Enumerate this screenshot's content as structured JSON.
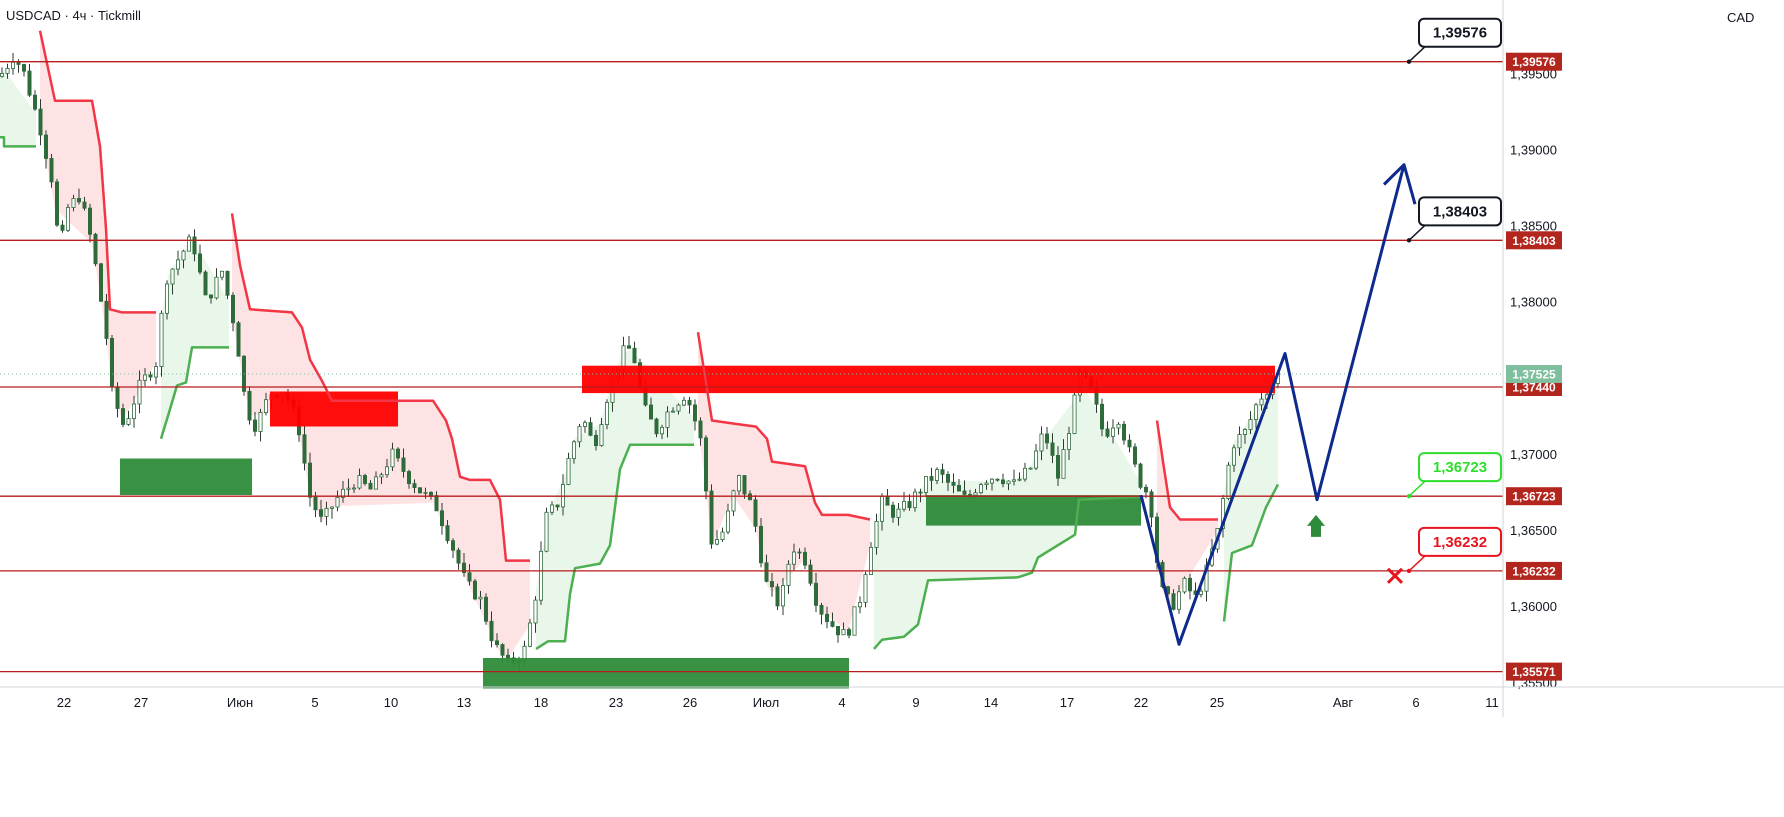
{
  "header": {
    "symbol_line": "USDCAD · 4ч · Tickmill",
    "currency": "CAD"
  },
  "colors": {
    "level_line": "#b71c1c",
    "level_tag": "#b3261e",
    "up_candle": "#26a69a",
    "down_candle": "#ef5350",
    "candle_body": "#2e6b3a",
    "trail_red": "#f23645",
    "trail_green": "#4caf50",
    "fill_red": "#fde3e3",
    "fill_green": "#e9f6ea",
    "zone_red": "#ff0000",
    "zone_green": "#2e8b3a",
    "projection": "#0d2a8c",
    "current_tag": "#7fbf9e",
    "target_green": "#2ede2e",
    "stop_red": "#e8141e"
  },
  "chart_data": {
    "type": "candlestick",
    "symbol": "USDCAD",
    "timeframe": "4ч",
    "broker": "Tickmill",
    "currency": "CAD",
    "ylim": [
      1.3545,
      1.3985
    ],
    "y_ticks": [
      "1,39500",
      "1,39000",
      "1,38500",
      "1,38000",
      "1,37000",
      "1,36500",
      "1,36000",
      "1,35500"
    ],
    "x_ticks": [
      "22",
      "27",
      "Июн",
      "5",
      "10",
      "13",
      "18",
      "23",
      "26",
      "Июл",
      "4",
      "9",
      "14",
      "17",
      "22",
      "25",
      "Авг",
      "6",
      "11"
    ],
    "levels": [
      {
        "price": 1.39576,
        "label": "1,39576"
      },
      {
        "price": 1.38403,
        "label": "1,38403"
      },
      {
        "price": 1.3744,
        "label": "1,37440"
      },
      {
        "price": 1.36723,
        "label": "1,36723"
      },
      {
        "price": 1.36232,
        "label": "1,36232"
      },
      {
        "price": 1.35571,
        "label": "1,35571"
      }
    ],
    "current_price": {
      "price": 1.37525,
      "label": "1,37525"
    },
    "callouts": [
      {
        "label": "1,39576",
        "price": 1.39576,
        "style": "neutral"
      },
      {
        "label": "1,38403",
        "price": 1.38403,
        "style": "neutral"
      },
      {
        "label": "1,36723",
        "price": 1.36723,
        "style": "target"
      },
      {
        "label": "1,36232",
        "price": 1.36232,
        "style": "stop"
      }
    ],
    "zones": [
      {
        "kind": "supply",
        "x_from": 582,
        "x_to": 1275,
        "price_top": 1.3758,
        "price_bottom": 1.374
      },
      {
        "kind": "supply",
        "x_from": 270,
        "x_to": 398,
        "price_top": 1.3741,
        "price_bottom": 1.3718
      },
      {
        "kind": "demand",
        "x_from": 120,
        "x_to": 252,
        "price_top": 1.3697,
        "price_bottom": 1.3673
      },
      {
        "kind": "demand",
        "x_from": 926,
        "x_to": 1141,
        "price_top": 1.3673,
        "price_bottom": 1.3653
      },
      {
        "kind": "demand",
        "x_from": 483,
        "x_to": 849,
        "price_top": 1.3566,
        "price_bottom": 1.3546
      }
    ],
    "projection_path": [
      [
        1141,
        1.3673
      ],
      [
        1179,
        1.3575
      ],
      [
        1285,
        1.3766
      ],
      [
        1317,
        1.367
      ],
      [
        1404,
        1.389
      ]
    ],
    "projection_arrowhead": [
      [
        1384,
        1.3877
      ],
      [
        1404,
        1.389
      ],
      [
        1415,
        1.3864
      ]
    ],
    "buy_arrow": {
      "x": 1316,
      "price": 1.366
    },
    "stop_mark": {
      "x": 1395,
      "price": 1.362
    },
    "trail_red_segments": [
      [
        [
          40,
          1.3978
        ],
        [
          55,
          1.3932
        ],
        [
          92,
          1.3932
        ],
        [
          100,
          1.3902
        ],
        [
          106,
          1.3848
        ],
        [
          110,
          1.3795
        ],
        [
          122,
          1.3793
        ],
        [
          156,
          1.3793
        ]
      ],
      [
        [
          232,
          1.3858
        ],
        [
          240,
          1.3824
        ],
        [
          250,
          1.3795
        ],
        [
          292,
          1.3793
        ],
        [
          302,
          1.3783
        ],
        [
          310,
          1.3762
        ],
        [
          322,
          1.3748
        ],
        [
          332,
          1.3735
        ],
        [
          433,
          1.3735
        ],
        [
          446,
          1.3722
        ],
        [
          452,
          1.371
        ],
        [
          460,
          1.3685
        ],
        [
          470,
          1.3683
        ],
        [
          490,
          1.3683
        ],
        [
          500,
          1.367
        ],
        [
          506,
          1.363
        ],
        [
          530,
          1.363
        ]
      ],
      [
        [
          698,
          1.378
        ],
        [
          704,
          1.3755
        ],
        [
          712,
          1.3722
        ],
        [
          733,
          1.372
        ],
        [
          756,
          1.3718
        ],
        [
          767,
          1.371
        ],
        [
          772,
          1.3695
        ],
        [
          805,
          1.3692
        ],
        [
          815,
          1.3668
        ],
        [
          822,
          1.366
        ],
        [
          848,
          1.366
        ],
        [
          870,
          1.3657
        ]
      ],
      [
        [
          1157,
          1.3722
        ],
        [
          1163,
          1.3695
        ],
        [
          1170,
          1.3665
        ],
        [
          1180,
          1.3657
        ],
        [
          1218,
          1.3657
        ]
      ]
    ],
    "trail_green_segments": [
      [
        [
          0,
          1.3908
        ],
        [
          4,
          1.3908
        ],
        [
          4,
          1.3902
        ],
        [
          36,
          1.3902
        ]
      ],
      [
        [
          161,
          1.371
        ],
        [
          168,
          1.3725
        ],
        [
          177,
          1.3745
        ],
        [
          186,
          1.3747
        ],
        [
          192,
          1.377
        ],
        [
          229,
          1.377
        ]
      ],
      [
        [
          536,
          1.3572
        ],
        [
          548,
          1.3577
        ],
        [
          565,
          1.3577
        ],
        [
          570,
          1.3608
        ],
        [
          575,
          1.3625
        ],
        [
          600,
          1.3628
        ],
        [
          610,
          1.364
        ],
        [
          620,
          1.369
        ],
        [
          630,
          1.3706
        ],
        [
          694,
          1.3706
        ]
      ],
      [
        [
          874,
          1.3572
        ],
        [
          882,
          1.3578
        ],
        [
          904,
          1.358
        ],
        [
          918,
          1.3588
        ],
        [
          928,
          1.3617
        ],
        [
          1018,
          1.3619
        ],
        [
          1032,
          1.3622
        ],
        [
          1038,
          1.3632
        ],
        [
          1075,
          1.3647
        ],
        [
          1079,
          1.367
        ],
        [
          1141,
          1.3672
        ]
      ],
      [
        [
          1224,
          1.359
        ],
        [
          1232,
          1.3635
        ],
        [
          1252,
          1.364
        ],
        [
          1266,
          1.3665
        ],
        [
          1278,
          1.368
        ]
      ]
    ],
    "price_path": [
      [
        0,
        1.3948
      ],
      [
        14,
        1.3962
      ],
      [
        24,
        1.395
      ],
      [
        40,
        1.3915
      ],
      [
        52,
        1.388
      ],
      [
        60,
        1.383
      ],
      [
        66,
        1.386
      ],
      [
        80,
        1.387
      ],
      [
        92,
        1.3838
      ],
      [
        106,
        1.378
      ],
      [
        112,
        1.374
      ],
      [
        124,
        1.3718
      ],
      [
        140,
        1.3745
      ],
      [
        156,
        1.376
      ],
      [
        166,
        1.3815
      ],
      [
        180,
        1.383
      ],
      [
        192,
        1.3842
      ],
      [
        206,
        1.38
      ],
      [
        222,
        1.382
      ],
      [
        236,
        1.378
      ],
      [
        246,
        1.373
      ],
      [
        256,
        1.3718
      ],
      [
        270,
        1.374
      ],
      [
        284,
        1.3742
      ],
      [
        298,
        1.372
      ],
      [
        310,
        1.3672
      ],
      [
        322,
        1.3655
      ],
      [
        336,
        1.367
      ],
      [
        356,
        1.3683
      ],
      [
        372,
        1.3676
      ],
      [
        392,
        1.37
      ],
      [
        408,
        1.3685
      ],
      [
        420,
        1.3676
      ],
      [
        436,
        1.3666
      ],
      [
        452,
        1.364
      ],
      [
        466,
        1.3615
      ],
      [
        480,
        1.3605
      ],
      [
        494,
        1.3575
      ],
      [
        508,
        1.3562
      ],
      [
        524,
        1.357
      ],
      [
        534,
        1.36
      ],
      [
        546,
        1.3658
      ],
      [
        558,
        1.3668
      ],
      [
        570,
        1.37
      ],
      [
        582,
        1.3725
      ],
      [
        594,
        1.3705
      ],
      [
        608,
        1.374
      ],
      [
        622,
        1.3766
      ],
      [
        632,
        1.377
      ],
      [
        644,
        1.373
      ],
      [
        656,
        1.3715
      ],
      [
        670,
        1.373
      ],
      [
        686,
        1.374
      ],
      [
        700,
        1.3712
      ],
      [
        712,
        1.364
      ],
      [
        724,
        1.365
      ],
      [
        738,
        1.3685
      ],
      [
        752,
        1.3665
      ],
      [
        766,
        1.3615
      ],
      [
        780,
        1.36
      ],
      [
        792,
        1.364
      ],
      [
        806,
        1.363
      ],
      [
        818,
        1.36
      ],
      [
        832,
        1.3588
      ],
      [
        846,
        1.358
      ],
      [
        860,
        1.3605
      ],
      [
        870,
        1.364
      ],
      [
        882,
        1.3668
      ],
      [
        896,
        1.366
      ],
      [
        910,
        1.3668
      ],
      [
        924,
        1.368
      ],
      [
        938,
        1.3688
      ],
      [
        952,
        1.3678
      ],
      [
        966,
        1.367
      ],
      [
        982,
        1.3683
      ],
      [
        998,
        1.3686
      ],
      [
        1014,
        1.368
      ],
      [
        1030,
        1.369
      ],
      [
        1044,
        1.3715
      ],
      [
        1058,
        1.3685
      ],
      [
        1070,
        1.372
      ],
      [
        1080,
        1.3752
      ],
      [
        1092,
        1.374
      ],
      [
        1104,
        1.3712
      ],
      [
        1118,
        1.3725
      ],
      [
        1130,
        1.37
      ],
      [
        1140,
        1.3682
      ],
      [
        1150,
        1.3672
      ],
      [
        1160,
        1.3612
      ],
      [
        1172,
        1.36
      ],
      [
        1184,
        1.3615
      ],
      [
        1196,
        1.3605
      ],
      [
        1206,
        1.3622
      ],
      [
        1218,
        1.365
      ],
      [
        1232,
        1.3706
      ],
      [
        1246,
        1.3715
      ],
      [
        1258,
        1.3735
      ],
      [
        1270,
        1.3745
      ],
      [
        1278,
        1.3752
      ]
    ]
  }
}
